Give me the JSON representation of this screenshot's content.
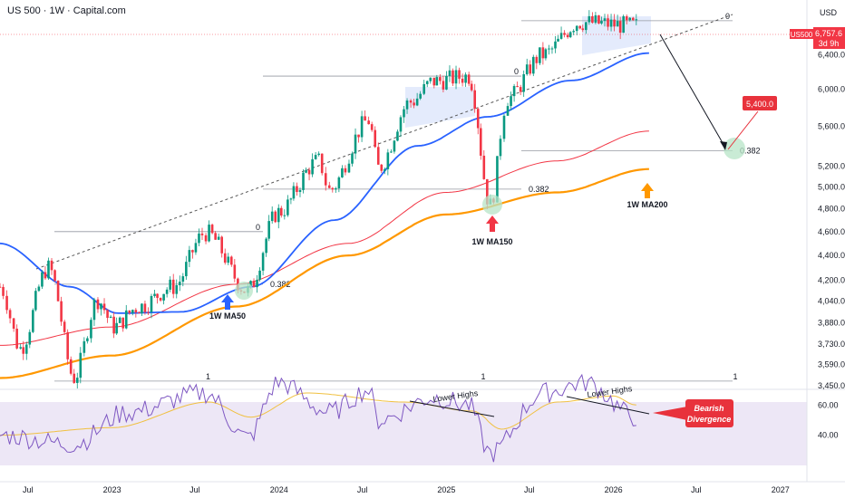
{
  "header": {
    "title": "US 500 · 1W · Capital.com"
  },
  "price_axis": {
    "currency": "USD",
    "ticks": [
      "6,400.0",
      "6,000.0",
      "5,600.0",
      "5,200.0",
      "5,000.0",
      "4,800.0",
      "4,600.0",
      "4,400.0",
      "4,200.0",
      "4,040.0",
      "3,880.0",
      "3,730.0",
      "3,590.0",
      "3,450.0"
    ],
    "symbol": "US500",
    "last_price": "6,757.6",
    "countdown": "3d 9h"
  },
  "rsi_axis": {
    "ticks": [
      "60.00",
      "40.00"
    ]
  },
  "time_axis": {
    "ticks": [
      "Jul",
      "2023",
      "Jul",
      "2024",
      "Jul",
      "2025",
      "Jul",
      "2026",
      "Jul",
      "2027"
    ]
  },
  "annotations": {
    "fib_zero": "0",
    "fib_382": "0.382",
    "fib_one": "1",
    "target_label": "5,400.0",
    "ma50_label": "1W MA50",
    "ma150_label": "1W MA150",
    "ma200_label": "1W MA200",
    "lower_highs": "Lower Highs",
    "bearish": [
      "Bearish",
      "Divergence"
    ]
  },
  "colors": {
    "up": "#089981",
    "down": "#f23645",
    "ma50": "#2962ff",
    "ma150": "#f23645",
    "ma200": "#ff9800",
    "rsi": "#7e57c2",
    "rsi_ma": "#f0c040",
    "rsi_band": "#ede7f6",
    "highlight": "#dde6fb",
    "circle": "#b7e4c7",
    "label_red": "#e8323c"
  },
  "chart_data": {
    "type": "candlestick",
    "symbol": "US 500",
    "timeframe": "1W",
    "y_scale": "log",
    "ylim": [
      3450,
      6900
    ],
    "xlim": [
      "2022-05-01",
      "2027-02-28"
    ],
    "last_price": 6757.6,
    "price_path": [
      [
        "2022-05-01",
        4150
      ],
      [
        "2022-06-15",
        3700
      ],
      [
        "2022-08-15",
        4300
      ],
      [
        "2022-10-10",
        3500
      ],
      [
        "2022-12-01",
        4050
      ],
      [
        "2023-01-05",
        3850
      ],
      [
        "2023-03-01",
        4000
      ],
      [
        "2023-05-15",
        4150
      ],
      [
        "2023-07-25",
        4590
      ],
      [
        "2023-10-25",
        4120
      ],
      [
        "2023-12-31",
        4770
      ],
      [
        "2024-03-28",
        5250
      ],
      [
        "2024-04-20",
        4970
      ],
      [
        "2024-07-15",
        5660
      ],
      [
        "2024-08-05",
        5180
      ],
      [
        "2024-10-15",
        5860
      ],
      [
        "2024-12-05",
        6090
      ],
      [
        "2025-02-19",
        6150
      ],
      [
        "2025-04-07",
        4830
      ],
      [
        "2025-05-15",
        5900
      ],
      [
        "2025-07-31",
        6400
      ],
      [
        "2025-10-20",
        6800
      ],
      [
        "2026-02-20",
        6757
      ]
    ],
    "ma50": [
      [
        "2022-05-01",
        4500
      ],
      [
        "2022-10-01",
        4150
      ],
      [
        "2023-01-15",
        3950
      ],
      [
        "2023-06-01",
        3960
      ],
      [
        "2023-11-01",
        4150
      ],
      [
        "2024-05-01",
        4700
      ],
      [
        "2024-11-01",
        5400
      ],
      [
        "2025-04-01",
        5700
      ],
      [
        "2025-10-01",
        6100
      ],
      [
        "2026-03-20",
        6420
      ]
    ],
    "ma150": [
      [
        "2022-05-01",
        3720
      ],
      [
        "2023-01-01",
        3850
      ],
      [
        "2023-10-01",
        4170
      ],
      [
        "2024-06-01",
        4500
      ],
      [
        "2025-01-01",
        4950
      ],
      [
        "2025-09-01",
        5250
      ],
      [
        "2026-03-20",
        5550
      ]
    ],
    "ma200": [
      [
        "2022-05-01",
        3500
      ],
      [
        "2023-01-01",
        3650
      ],
      [
        "2023-10-01",
        4000
      ],
      [
        "2024-06-01",
        4400
      ],
      [
        "2025-01-01",
        4750
      ],
      [
        "2025-09-01",
        4950
      ],
      [
        "2026-03-20",
        5170
      ]
    ],
    "fibonacci": [
      {
        "zero": 4600,
        "level_382": 4170,
        "one": 3480
      },
      {
        "zero": 6150,
        "level_382": 4980,
        "one": 3480
      },
      {
        "zero": 6820,
        "level_382": 5350,
        "one": 3480
      }
    ],
    "target": 5400,
    "rsi": {
      "ylim": [
        20,
        80
      ],
      "band": [
        30,
        70
      ],
      "path": [
        [
          "2022-05-01",
          40
        ],
        [
          "2022-10-10",
          34
        ],
        [
          "2023-02-01",
          55
        ],
        [
          "2023-07-25",
          68
        ],
        [
          "2023-10-25",
          38
        ],
        [
          "2023-12-31",
          75
        ],
        [
          "2024-04-20",
          55
        ],
        [
          "2024-07-15",
          70
        ],
        [
          "2024-08-05",
          50
        ],
        [
          "2024-12-05",
          65
        ],
        [
          "2025-02-19",
          60
        ],
        [
          "2025-04-07",
          28
        ],
        [
          "2025-07-31",
          68
        ],
        [
          "2025-11-01",
          75
        ],
        [
          "2026-02-20",
          52
        ]
      ],
      "ma_path": [
        [
          "2022-05-01",
          40
        ],
        [
          "2023-01-01",
          45
        ],
        [
          "2023-08-01",
          62
        ],
        [
          "2023-11-01",
          52
        ],
        [
          "2024-03-01",
          68
        ],
        [
          "2024-10-01",
          62
        ],
        [
          "2025-03-01",
          56
        ],
        [
          "2025-05-01",
          44
        ],
        [
          "2025-09-01",
          62
        ],
        [
          "2026-01-01",
          66
        ],
        [
          "2026-02-20",
          60
        ]
      ]
    }
  }
}
